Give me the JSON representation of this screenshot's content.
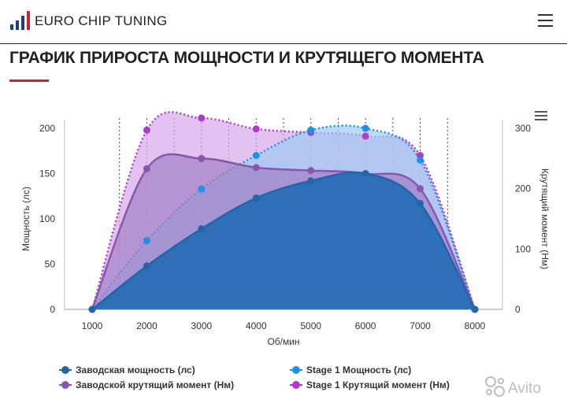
{
  "header": {
    "brand": "EURO CHIP TUNING",
    "logo_icon": "bar-chart-logo-icon",
    "menu_icon": "hamburger-menu-icon"
  },
  "page": {
    "title": "ГРАФИК ПРИРОСТА МОЩНОСТИ И КРУТЯЩЕГО МОМЕНТА",
    "accent_color": "#c62828"
  },
  "chart_data": {
    "type": "area",
    "xlabel": "Об/мин",
    "ylabel_left": "Мощность (лс)",
    "ylabel_right": "Крутящий момент (Нм)",
    "x_ticks": [
      1000,
      2000,
      3000,
      4000,
      5000,
      6000,
      7000,
      8000
    ],
    "xlim": [
      1000,
      8000
    ],
    "ylim_left": [
      0,
      200
    ],
    "yticks_left": [
      0,
      50,
      100,
      150,
      200
    ],
    "ylim_right": [
      0,
      300
    ],
    "yticks_right": [
      0,
      100,
      200,
      300
    ],
    "grid": "vertical dotted every 500 rpm",
    "legend_position": "bottom",
    "menu_icon": "chart-menu-icon",
    "series": [
      {
        "name": "Stage 1 Крутящий момент (Нм)",
        "axis": "right",
        "color": "#b03ad0",
        "fill": "#d7a6ea",
        "dashed": true,
        "x": [
          1000,
          2000,
          3000,
          4000,
          5000,
          6000,
          7000,
          8000
        ],
        "values": [
          0,
          297,
          317,
          299,
          293,
          287,
          255,
          0
        ]
      },
      {
        "name": "Stage 1 Мощность (лс)",
        "axis": "left",
        "color": "#1e90e8",
        "fill": "#9ccaf3",
        "dashed": true,
        "x": [
          1000,
          2000,
          3000,
          4000,
          5000,
          6000,
          7000,
          8000
        ],
        "values": [
          0,
          76,
          133,
          170,
          198,
          200,
          165,
          0
        ]
      },
      {
        "name": "Заводской крутящий момент (Нм)",
        "axis": "right",
        "color": "#8a55ad",
        "fill": "#a27fc4",
        "dashed": false,
        "x": [
          1000,
          2000,
          3000,
          4000,
          5000,
          6000,
          7000,
          8000
        ],
        "values": [
          0,
          233,
          250,
          235,
          230,
          225,
          200,
          0
        ]
      },
      {
        "name": "Заводская мощность (лс)",
        "axis": "left",
        "color": "#2266aa",
        "fill": "#2e6fb8",
        "dashed": false,
        "x": [
          1000,
          2000,
          3000,
          4000,
          5000,
          6000,
          7000,
          8000
        ],
        "values": [
          0,
          48,
          89,
          123,
          142,
          150,
          117,
          0
        ]
      }
    ],
    "legend": [
      {
        "label": "Заводская мощность (лс)",
        "color": "#2266aa",
        "col": 0,
        "row": 0
      },
      {
        "label": "Stage 1 Мощность (лс)",
        "color": "#1e90e8",
        "col": 1,
        "row": 0
      },
      {
        "label": "Заводской крутящий момент (Нм)",
        "color": "#8a55ad",
        "col": 0,
        "row": 1
      },
      {
        "label": "Stage 1 Крутящий момент (Нм)",
        "color": "#b03ad0",
        "col": 1,
        "row": 1
      }
    ]
  },
  "watermark": {
    "text": "Avito",
    "icon": "avito-logo-icon"
  }
}
